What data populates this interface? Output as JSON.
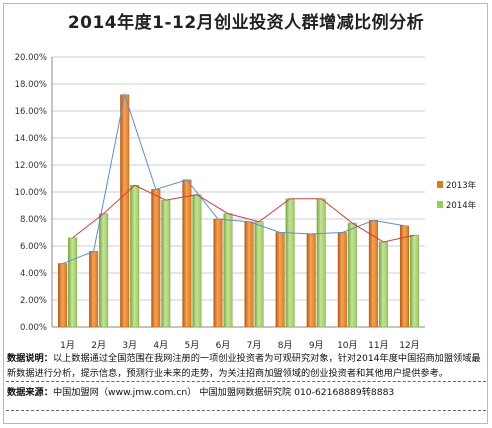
{
  "title": "2014年度1-12月创业投资人群增减比例分析",
  "chart_data": {
    "type": "bar",
    "categories": [
      "1月",
      "2月",
      "3月",
      "4月",
      "5月",
      "6月",
      "7月",
      "8月",
      "9月",
      "10月",
      "11月",
      "12月"
    ],
    "series": [
      {
        "name": "2013年",
        "values": [
          4.7,
          5.6,
          17.2,
          10.2,
          10.9,
          8.0,
          7.8,
          7.0,
          6.9,
          7.0,
          7.9,
          7.5
        ],
        "color": "#e07a1f"
      },
      {
        "name": "2014年",
        "values": [
          6.6,
          8.4,
          10.5,
          9.4,
          9.8,
          8.4,
          7.8,
          9.5,
          9.5,
          7.7,
          6.3,
          6.8
        ],
        "color": "#9ccb5b"
      }
    ],
    "trend_lines": [
      {
        "series": "2013年",
        "color": "#5b8fd4"
      },
      {
        "series": "2014年",
        "color": "#c9434a"
      }
    ],
    "y_ticks": [
      "0.00%",
      "2.00%",
      "4.00%",
      "6.00%",
      "8.00%",
      "10.00%",
      "12.00%",
      "14.00%",
      "16.00%",
      "18.00%",
      "20.00%"
    ],
    "ylim": [
      0,
      20
    ],
    "grid": true,
    "legend_position": "right"
  },
  "note": {
    "label": "数据说明：",
    "text": "以上数据通过全国范围在我网注册的一项创业投资者为可观研究对象，针对2014年度中国招商加盟领域最新数据进行分析，提示信息，预测行业未来的走势，为关注招商加盟领域的创业投资者和其他用户提供参考。"
  },
  "source": {
    "label": "数据来源：",
    "text": "中国加盟网（www.jmw.com.cn）   中国加盟网数据研究院   010-62168889转8883"
  }
}
